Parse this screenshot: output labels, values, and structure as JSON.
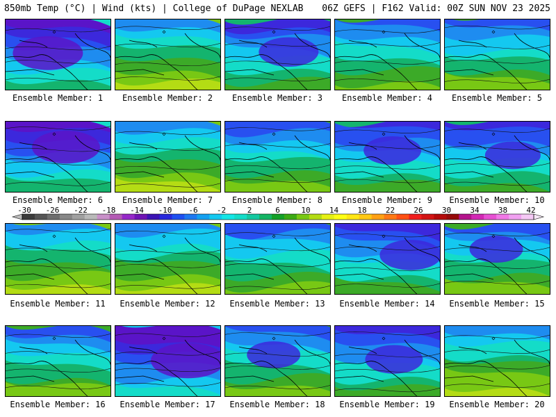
{
  "header": {
    "left": "850mb Temp (°C) | Wind (kts) | College of DuPage NEXLAB",
    "right": "06Z GEFS | F162 Valid: 00Z SUN NOV 23 2025"
  },
  "caption_prefix": "Ensemble Member:",
  "members": [
    {
      "number": "1",
      "label": "Ensemble Member: 1",
      "cold": 0.85
    },
    {
      "number": "2",
      "label": "Ensemble Member: 2",
      "cold": 0.25
    },
    {
      "number": "3",
      "label": "Ensemble Member: 3",
      "cold": 0.6
    },
    {
      "number": "4",
      "label": "Ensemble Member: 4",
      "cold": 0.3
    },
    {
      "number": "5",
      "label": "Ensemble Member: 5",
      "cold": 0.35
    },
    {
      "number": "6",
      "label": "Ensemble Member: 6",
      "cold": 0.8
    },
    {
      "number": "7",
      "label": "Ensemble Member: 7",
      "cold": 0.15
    },
    {
      "number": "8",
      "label": "Ensemble Member: 8",
      "cold": 0.35
    },
    {
      "number": "9",
      "label": "Ensemble Member: 9",
      "cold": 0.55
    },
    {
      "number": "10",
      "label": "Ensemble Member: 10",
      "cold": 0.5
    },
    {
      "number": "11",
      "label": "Ensemble Member: 11",
      "cold": 0.25
    },
    {
      "number": "12",
      "label": "Ensemble Member: 12",
      "cold": 0.2
    },
    {
      "number": "13",
      "label": "Ensemble Member: 13",
      "cold": 0.4
    },
    {
      "number": "14",
      "label": "Ensemble Member: 14",
      "cold": 0.65
    },
    {
      "number": "15",
      "label": "Ensemble Member: 15",
      "cold": 0.45
    },
    {
      "number": "16",
      "label": "Ensemble Member: 16",
      "cold": 0.3
    },
    {
      "number": "17",
      "label": "Ensemble Member: 17",
      "cold": 0.95
    },
    {
      "number": "18",
      "label": "Ensemble Member: 18",
      "cold": 0.45
    },
    {
      "number": "19",
      "label": "Ensemble Member: 19",
      "cold": 0.55
    },
    {
      "number": "20",
      "label": "Ensemble Member: 20",
      "cold": 0.1
    }
  ],
  "colorbar": {
    "labels": [
      "-30",
      "-26",
      "-22",
      "-18",
      "-14",
      "-10",
      "-6",
      "-2",
      "2",
      "6",
      "10",
      "14",
      "18",
      "22",
      "26",
      "30",
      "34",
      "38",
      "42"
    ],
    "colors": [
      "#3c3c3c",
      "#555555",
      "#6e6e6e",
      "#878787",
      "#a0a0a0",
      "#b9b9b9",
      "#c890c8",
      "#b45ab4",
      "#9628c8",
      "#7014b4",
      "#3c14b4",
      "#2828dc",
      "#1e50f0",
      "#1e78f0",
      "#14a0f0",
      "#14c8f0",
      "#14e6e6",
      "#14dcc8",
      "#14c8a0",
      "#14b464",
      "#14a028",
      "#3caa14",
      "#78c814",
      "#b4dc14",
      "#e6f014",
      "#ffff14",
      "#ffe614",
      "#ffc814",
      "#ffa014",
      "#ff7814",
      "#ff5014",
      "#f01e1e",
      "#d21414",
      "#b40a0a",
      "#960a0a",
      "#b4148c",
      "#d228b4",
      "#e650d2",
      "#f078e6",
      "#f0a0f0",
      "#f5c8f5"
    ]
  },
  "fill_colors": [
    "#5a14c8",
    "#3c28dc",
    "#2850f0",
    "#1e8cf0",
    "#14c8f0",
    "#14dcc8",
    "#14b46e",
    "#3caa28",
    "#78c814",
    "#b4dc14",
    "#e6f014"
  ]
}
